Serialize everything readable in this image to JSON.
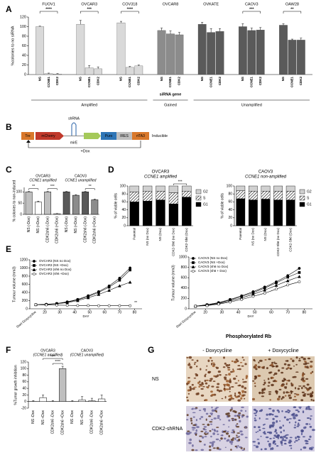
{
  "chart_data": [
    {
      "panel": "A",
      "type": "grouped_bar",
      "categories": [
        "FUOV1",
        "OVCAR3",
        "COV318",
        "OVCAR8",
        "OVKATE",
        "CAOV3",
        "OAW28"
      ],
      "category_colors": [
        "#d9d9d9",
        "#d9d9d9",
        "#d9d9d9",
        "#8c8c8c",
        "#5a5a5a",
        "#5a5a5a",
        "#5a5a5a"
      ],
      "series": [
        {
          "name": "NS",
          "values": [
            100,
            105,
            108,
            92,
            105,
            100,
            103
          ],
          "errors": [
            1,
            8,
            3,
            5,
            4,
            6,
            3
          ]
        },
        {
          "name": "CCNE1",
          "values": [
            2,
            14,
            15,
            85,
            88,
            92,
            72
          ],
          "errors": [
            1,
            5,
            2,
            6,
            8,
            5,
            2
          ]
        },
        {
          "name": "CDK2",
          "values": [
            1,
            12,
            18,
            83,
            90,
            93,
            72
          ],
          "errors": [
            1,
            4,
            2,
            5,
            6,
            5,
            4
          ]
        }
      ],
      "significance": [
        "****",
        "***",
        "****",
        null,
        null,
        "***",
        "**"
      ],
      "groups": [
        {
          "name": "Amplified",
          "members": [
            "FUOV1",
            "OVCAR3",
            "COV318"
          ]
        },
        {
          "name": "Gained",
          "members": [
            "OVCAR8"
          ]
        },
        {
          "name": "Unamplified",
          "members": [
            "OVKATE",
            "CAOV3",
            "OAW28"
          ]
        }
      ],
      "xlabel": "siRNA gene",
      "ylabel": "%colonies to no siRNA",
      "ylim": [
        0,
        120
      ],
      "yticks": [
        0,
        20,
        40,
        60,
        80,
        100,
        120
      ]
    },
    {
      "panel": "C",
      "type": "bar",
      "categories": [
        "NS (-Dox)",
        "NS (+Dox)",
        "CDK2sh6 (-Dox)",
        "CDK2sh6 (+Dox)",
        "NS (-Dox)",
        "NS (+Dox)",
        "CDK2sh6 (-Dox)",
        "CDK2sh6 (+Dox)"
      ],
      "values": [
        100,
        55,
        100,
        3,
        100,
        85,
        100,
        65
      ],
      "errors": [
        2,
        4,
        2,
        1,
        2,
        3,
        2,
        3
      ],
      "colors": [
        "#bfbfbf",
        "#ffffff",
        "#bfbfbf",
        "#ffffff",
        "#595959",
        "#8c8c8c",
        "#595959",
        "#8c8c8c"
      ],
      "significance": [
        null,
        "**",
        null,
        "***",
        null,
        null,
        null,
        "**"
      ],
      "groups": [
        {
          "name": "OVCAR3",
          "subtitle": "CCNE1 amplified",
          "members": [
            "NS (-Dox)",
            "NS (+Dox)",
            "CDK2sh6 (-Dox)",
            "CDK2sh6 (+Dox)"
          ]
        },
        {
          "name": "CAOV3",
          "subtitle": "CCNE1 unamplified",
          "members": [
            "NS (-Dox)",
            "NS (+Dox)",
            "CDK2sh6 (-Dox)",
            "CDK2sh6 (+Dox)"
          ]
        }
      ],
      "ylabel": "% colonies to non-induced",
      "ylim": [
        0,
        120
      ],
      "yticks": [
        0,
        50,
        100
      ]
    },
    {
      "panel": "D",
      "type": "stacked_bar",
      "title": "OVCAR3",
      "subtitle": "CCNE1 amplified",
      "categories": [
        "Parental",
        "NS (no Dox)",
        "NS (Dox)",
        "CDK2-Sh6 (no Dox)",
        "CDK2-Sh6 (Dox)"
      ],
      "series": [
        {
          "name": "G1",
          "color": "#000000",
          "values": [
            60,
            62,
            65,
            55,
            72
          ]
        },
        {
          "name": "S",
          "color": "#ffffff",
          "pattern": "hatch",
          "values": [
            25,
            25,
            22,
            28,
            15
          ]
        },
        {
          "name": "G2",
          "color": "#d0d0d0",
          "values": [
            15,
            13,
            13,
            17,
            13
          ]
        }
      ],
      "significance": [
        null,
        null,
        null,
        null,
        "***"
      ],
      "ylabel": "% of viable cells",
      "ylim": [
        0,
        100
      ],
      "yticks": [
        0,
        20,
        40,
        60,
        80,
        100
      ]
    },
    {
      "type": "stacked_bar",
      "title": "CAOV3",
      "subtitle": "CCNE1 non-amplified",
      "categories": [
        "Parental",
        "NS (no Dox)",
        "NS (Dox)",
        "CDK2-Sh6 (no Dox)",
        "CDK2-Sh6 (Dox)"
      ],
      "series": [
        {
          "name": "G1",
          "color": "#000000",
          "values": [
            68,
            65,
            67,
            65,
            65
          ]
        },
        {
          "name": "S",
          "color": "#ffffff",
          "pattern": "hatch",
          "values": [
            20,
            22,
            20,
            22,
            22
          ]
        },
        {
          "name": "G2",
          "color": "#d0d0d0",
          "values": [
            12,
            13,
            13,
            13,
            13
          ]
        }
      ],
      "ylabel": "% of viable cells",
      "ylim": [
        0,
        100
      ],
      "yticks": [
        0,
        20,
        40,
        60,
        80,
        100
      ]
    },
    {
      "panel": "E",
      "type": "line",
      "x": [
        14,
        21,
        28,
        35,
        42,
        49,
        56,
        63,
        70,
        77
      ],
      "series": [
        {
          "name": "OVCAR3 (NS no Dox)",
          "color": "#000000",
          "marker": "circle",
          "values": [
            100,
            110,
            130,
            170,
            230,
            320,
            420,
            560,
            750,
            1000
          ]
        },
        {
          "name": "OVCAR3 (NS +Dox)",
          "color": "#000000",
          "marker": "square",
          "values": [
            100,
            105,
            125,
            160,
            220,
            300,
            400,
            530,
            700,
            950
          ]
        },
        {
          "name": "OVCAR3 (sh6 no Dox)",
          "color": "#000000",
          "marker": "triangle",
          "values": [
            100,
            110,
            125,
            150,
            200,
            270,
            350,
            450,
            560,
            650
          ]
        },
        {
          "name": "OVCAR3 (sh6 +Dox)",
          "color": "#000000",
          "marker": "circle-open",
          "values": [
            100,
            95,
            90,
            85,
            80,
            80,
            75,
            75,
            75,
            75
          ]
        }
      ],
      "annotation": "Start Doxycycline",
      "significance": "**",
      "xlabel": "DAY",
      "ylabel": "Tumour volume (mm3)",
      "xlim": [
        10,
        85
      ],
      "xticks": [
        20,
        30,
        40,
        50,
        60,
        70,
        80
      ],
      "ylim": [
        0,
        1200
      ],
      "yticks": [
        0,
        200,
        400,
        600,
        800,
        1000,
        1200
      ]
    },
    {
      "type": "line",
      "x": [
        14,
        21,
        28,
        35,
        42,
        49,
        56,
        63,
        70,
        77
      ],
      "series": [
        {
          "name": "CAOV3 (NS no Dox)",
          "color": "#000000",
          "marker": "circle",
          "values": [
            50,
            80,
            120,
            180,
            250,
            330,
            420,
            520,
            640,
            780
          ]
        },
        {
          "name": "CAOV3 (NS +Dox)",
          "color": "#000000",
          "marker": "square",
          "values": [
            50,
            75,
            110,
            170,
            240,
            310,
            400,
            500,
            610,
            700
          ]
        },
        {
          "name": "CAOV3 (sh6 no Dox)",
          "color": "#000000",
          "marker": "triangle",
          "values": [
            50,
            70,
            100,
            150,
            210,
            280,
            360,
            450,
            540,
            620
          ]
        },
        {
          "name": "CAOV3 (sh6 + Dox)",
          "color": "#000000",
          "marker": "circle-open",
          "values": [
            50,
            60,
            90,
            130,
            180,
            240,
            300,
            380,
            460,
            520
          ]
        }
      ],
      "annotation": "Start Doxycycline",
      "xlabel": "DAY",
      "ylabel": "Tumour volume (mm3)",
      "xlim": [
        10,
        85
      ],
      "xticks": [
        20,
        30,
        40,
        50,
        60,
        70,
        80
      ],
      "ylim": [
        0,
        1000
      ],
      "yticks": [
        0,
        200,
        400,
        600,
        800,
        1000
      ]
    },
    {
      "panel": "F",
      "type": "bar",
      "categories": [
        "NS -Dox",
        "NS +Dox",
        "CDK2sh6 -Dox",
        "CDK2sh6 +Dox",
        "NS -Dox",
        "NS +Dox",
        "CDK2sh6 -Dox",
        "CDK2sh6 +Dox"
      ],
      "values": [
        0,
        12,
        0,
        100,
        0,
        5,
        2,
        8
      ],
      "errors": [
        3,
        8,
        3,
        7,
        3,
        10,
        8,
        12
      ],
      "colors": [
        "#ffffff",
        "#ffffff",
        "#ffffff",
        "#bfbfbf",
        "#ffffff",
        "#ffffff",
        "#ffffff",
        "#ffffff"
      ],
      "comparisons": [
        {
          "label": "****",
          "pair": [
            "CDK2sh6 -Dox",
            "CDK2sh6 +Dox"
          ]
        },
        {
          "label": "****",
          "pair": [
            "NS +Dox",
            "CDK2sh6 +Dox"
          ]
        }
      ],
      "groups": [
        {
          "name": "OVCAR3",
          "subtitle": "(CCNE1 amplified)",
          "members": [
            "NS -Dox",
            "NS +Dox",
            "CDK2sh6 -Dox",
            "CDK2sh6 +Dox"
          ]
        },
        {
          "name": "CAOV3",
          "subtitle": "(CCNE1 unamplified)",
          "members": [
            "NS -Dox",
            "NS +Dox",
            "CDK2sh6 -Dox",
            "CDK2sh6 +Dox"
          ]
        }
      ],
      "ylabel": "%Tumor growth inhibition",
      "ylim": [
        -20,
        120
      ],
      "yticks": [
        -20,
        0,
        20,
        40,
        60,
        80,
        100,
        120
      ]
    }
  ],
  "construct": {
    "panel": "B",
    "elements": [
      "Tre",
      "mCherry",
      "mirE",
      "Puro",
      "IRES",
      "rtTA3"
    ],
    "shrna": "shRNA",
    "dox": "+Dox",
    "note": "Inducible"
  },
  "ihc": {
    "panel": "G",
    "title": "Phosphorylated Rb",
    "columns": [
      "- Doxycycline",
      "+ Doxycycline"
    ],
    "rows": [
      "NS",
      "CDK2-shRNA"
    ]
  }
}
